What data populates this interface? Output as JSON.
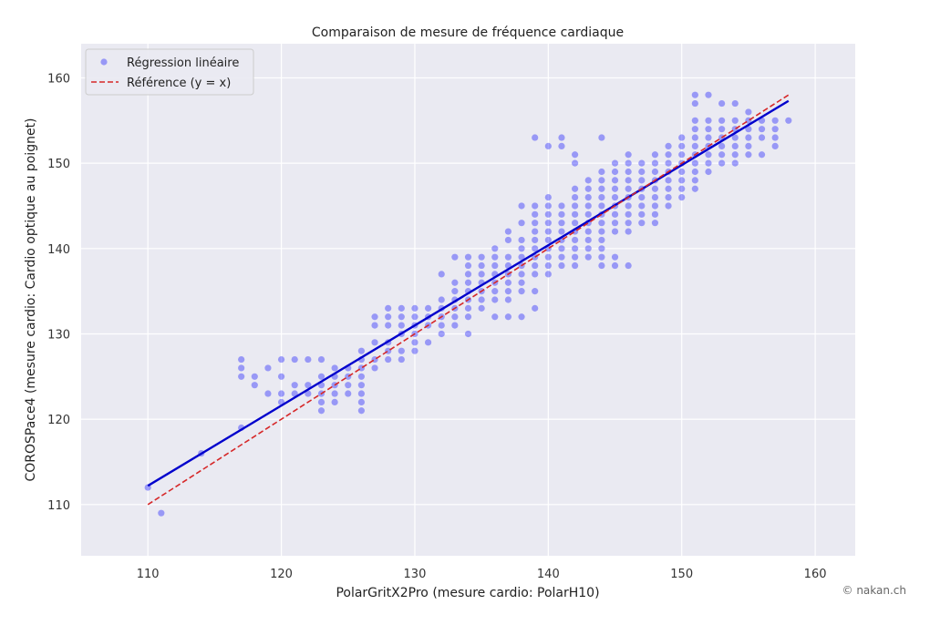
{
  "chart_data": {
    "type": "scatter",
    "title": "Comparaison de mesure de fréquence cardiaque",
    "xlabel": "PolarGritX2Pro (mesure cardio: PolarH10)",
    "ylabel": "COROSPace4 (mesure cardio: Cardio optique au poignet)",
    "xlim": [
      105,
      163
    ],
    "ylim": [
      104,
      164
    ],
    "xticks": [
      110,
      120,
      130,
      140,
      150,
      160
    ],
    "yticks": [
      110,
      120,
      130,
      140,
      150,
      160
    ],
    "grid": true,
    "legend_position": "top-left",
    "background": "#eaeaf2",
    "series": [
      {
        "name": "Régression linéaire",
        "kind": "scatter",
        "color": "#0000ff",
        "alpha": 0.35,
        "points": [
          [
            110,
            112
          ],
          [
            111,
            109
          ],
          [
            114,
            116
          ],
          [
            117,
            119
          ],
          [
            117,
            125
          ],
          [
            117,
            126
          ],
          [
            117,
            127
          ],
          [
            118,
            124
          ],
          [
            118,
            125
          ],
          [
            119,
            123
          ],
          [
            119,
            126
          ],
          [
            120,
            122
          ],
          [
            120,
            123
          ],
          [
            120,
            125
          ],
          [
            120,
            127
          ],
          [
            121,
            123
          ],
          [
            121,
            124
          ],
          [
            121,
            127
          ],
          [
            122,
            123
          ],
          [
            122,
            124
          ],
          [
            122,
            127
          ],
          [
            123,
            121
          ],
          [
            123,
            122
          ],
          [
            123,
            123
          ],
          [
            123,
            124
          ],
          [
            123,
            125
          ],
          [
            123,
            127
          ],
          [
            124,
            122
          ],
          [
            124,
            123
          ],
          [
            124,
            124
          ],
          [
            124,
            125
          ],
          [
            124,
            126
          ],
          [
            125,
            123
          ],
          [
            125,
            124
          ],
          [
            125,
            125
          ],
          [
            125,
            126
          ],
          [
            126,
            121
          ],
          [
            126,
            122
          ],
          [
            126,
            123
          ],
          [
            126,
            124
          ],
          [
            126,
            125
          ],
          [
            126,
            126
          ],
          [
            126,
            127
          ],
          [
            126,
            128
          ],
          [
            127,
            126
          ],
          [
            127,
            127
          ],
          [
            127,
            129
          ],
          [
            127,
            131
          ],
          [
            127,
            132
          ],
          [
            128,
            127
          ],
          [
            128,
            128
          ],
          [
            128,
            129
          ],
          [
            128,
            131
          ],
          [
            128,
            132
          ],
          [
            128,
            133
          ],
          [
            129,
            127
          ],
          [
            129,
            128
          ],
          [
            129,
            130
          ],
          [
            129,
            131
          ],
          [
            129,
            132
          ],
          [
            129,
            133
          ],
          [
            130,
            128
          ],
          [
            130,
            129
          ],
          [
            130,
            130
          ],
          [
            130,
            131
          ],
          [
            130,
            132
          ],
          [
            130,
            133
          ],
          [
            131,
            129
          ],
          [
            131,
            131
          ],
          [
            131,
            132
          ],
          [
            131,
            133
          ],
          [
            132,
            130
          ],
          [
            132,
            131
          ],
          [
            132,
            132
          ],
          [
            132,
            133
          ],
          [
            132,
            134
          ],
          [
            132,
            137
          ],
          [
            133,
            131
          ],
          [
            133,
            132
          ],
          [
            133,
            133
          ],
          [
            133,
            134
          ],
          [
            133,
            135
          ],
          [
            133,
            136
          ],
          [
            133,
            139
          ],
          [
            134,
            130
          ],
          [
            134,
            132
          ],
          [
            134,
            133
          ],
          [
            134,
            134
          ],
          [
            134,
            135
          ],
          [
            134,
            136
          ],
          [
            134,
            137
          ],
          [
            134,
            138
          ],
          [
            134,
            139
          ],
          [
            135,
            133
          ],
          [
            135,
            134
          ],
          [
            135,
            135
          ],
          [
            135,
            136
          ],
          [
            135,
            137
          ],
          [
            135,
            138
          ],
          [
            135,
            139
          ],
          [
            136,
            132
          ],
          [
            136,
            134
          ],
          [
            136,
            135
          ],
          [
            136,
            136
          ],
          [
            136,
            137
          ],
          [
            136,
            138
          ],
          [
            136,
            139
          ],
          [
            136,
            140
          ],
          [
            137,
            132
          ],
          [
            137,
            134
          ],
          [
            137,
            135
          ],
          [
            137,
            136
          ],
          [
            137,
            137
          ],
          [
            137,
            138
          ],
          [
            137,
            139
          ],
          [
            137,
            141
          ],
          [
            137,
            142
          ],
          [
            138,
            132
          ],
          [
            138,
            135
          ],
          [
            138,
            136
          ],
          [
            138,
            137
          ],
          [
            138,
            138
          ],
          [
            138,
            139
          ],
          [
            138,
            140
          ],
          [
            138,
            141
          ],
          [
            138,
            143
          ],
          [
            138,
            145
          ],
          [
            139,
            133
          ],
          [
            139,
            135
          ],
          [
            139,
            137
          ],
          [
            139,
            138
          ],
          [
            139,
            139
          ],
          [
            139,
            140
          ],
          [
            139,
            141
          ],
          [
            139,
            142
          ],
          [
            139,
            143
          ],
          [
            139,
            144
          ],
          [
            139,
            145
          ],
          [
            139,
            153
          ],
          [
            140,
            137
          ],
          [
            140,
            138
          ],
          [
            140,
            139
          ],
          [
            140,
            140
          ],
          [
            140,
            141
          ],
          [
            140,
            142
          ],
          [
            140,
            143
          ],
          [
            140,
            144
          ],
          [
            140,
            145
          ],
          [
            140,
            146
          ],
          [
            140,
            152
          ],
          [
            141,
            138
          ],
          [
            141,
            139
          ],
          [
            141,
            140
          ],
          [
            141,
            141
          ],
          [
            141,
            142
          ],
          [
            141,
            143
          ],
          [
            141,
            144
          ],
          [
            141,
            145
          ],
          [
            141,
            152
          ],
          [
            141,
            153
          ],
          [
            142,
            138
          ],
          [
            142,
            139
          ],
          [
            142,
            140
          ],
          [
            142,
            141
          ],
          [
            142,
            142
          ],
          [
            142,
            143
          ],
          [
            142,
            144
          ],
          [
            142,
            145
          ],
          [
            142,
            146
          ],
          [
            142,
            147
          ],
          [
            142,
            150
          ],
          [
            142,
            151
          ],
          [
            143,
            139
          ],
          [
            143,
            140
          ],
          [
            143,
            141
          ],
          [
            143,
            142
          ],
          [
            143,
            143
          ],
          [
            143,
            144
          ],
          [
            143,
            145
          ],
          [
            143,
            146
          ],
          [
            143,
            147
          ],
          [
            143,
            148
          ],
          [
            144,
            138
          ],
          [
            144,
            139
          ],
          [
            144,
            140
          ],
          [
            144,
            141
          ],
          [
            144,
            142
          ],
          [
            144,
            143
          ],
          [
            144,
            144
          ],
          [
            144,
            145
          ],
          [
            144,
            146
          ],
          [
            144,
            147
          ],
          [
            144,
            148
          ],
          [
            144,
            149
          ],
          [
            144,
            153
          ],
          [
            145,
            138
          ],
          [
            145,
            139
          ],
          [
            145,
            142
          ],
          [
            145,
            143
          ],
          [
            145,
            144
          ],
          [
            145,
            145
          ],
          [
            145,
            146
          ],
          [
            145,
            147
          ],
          [
            145,
            148
          ],
          [
            145,
            149
          ],
          [
            145,
            150
          ],
          [
            146,
            138
          ],
          [
            146,
            142
          ],
          [
            146,
            143
          ],
          [
            146,
            144
          ],
          [
            146,
            145
          ],
          [
            146,
            146
          ],
          [
            146,
            147
          ],
          [
            146,
            148
          ],
          [
            146,
            149
          ],
          [
            146,
            150
          ],
          [
            146,
            151
          ],
          [
            147,
            143
          ],
          [
            147,
            144
          ],
          [
            147,
            145
          ],
          [
            147,
            146
          ],
          [
            147,
            147
          ],
          [
            147,
            148
          ],
          [
            147,
            149
          ],
          [
            147,
            150
          ],
          [
            148,
            143
          ],
          [
            148,
            144
          ],
          [
            148,
            145
          ],
          [
            148,
            146
          ],
          [
            148,
            147
          ],
          [
            148,
            148
          ],
          [
            148,
            149
          ],
          [
            148,
            150
          ],
          [
            148,
            151
          ],
          [
            149,
            145
          ],
          [
            149,
            146
          ],
          [
            149,
            147
          ],
          [
            149,
            148
          ],
          [
            149,
            149
          ],
          [
            149,
            150
          ],
          [
            149,
            151
          ],
          [
            149,
            152
          ],
          [
            150,
            146
          ],
          [
            150,
            147
          ],
          [
            150,
            148
          ],
          [
            150,
            149
          ],
          [
            150,
            150
          ],
          [
            150,
            151
          ],
          [
            150,
            152
          ],
          [
            150,
            153
          ],
          [
            151,
            147
          ],
          [
            151,
            148
          ],
          [
            151,
            149
          ],
          [
            151,
            150
          ],
          [
            151,
            151
          ],
          [
            151,
            152
          ],
          [
            151,
            153
          ],
          [
            151,
            154
          ],
          [
            151,
            155
          ],
          [
            151,
            157
          ],
          [
            151,
            158
          ],
          [
            152,
            149
          ],
          [
            152,
            150
          ],
          [
            152,
            151
          ],
          [
            152,
            152
          ],
          [
            152,
            153
          ],
          [
            152,
            154
          ],
          [
            152,
            155
          ],
          [
            152,
            158
          ],
          [
            153,
            150
          ],
          [
            153,
            151
          ],
          [
            153,
            152
          ],
          [
            153,
            153
          ],
          [
            153,
            154
          ],
          [
            153,
            155
          ],
          [
            153,
            157
          ],
          [
            154,
            150
          ],
          [
            154,
            151
          ],
          [
            154,
            152
          ],
          [
            154,
            153
          ],
          [
            154,
            154
          ],
          [
            154,
            155
          ],
          [
            154,
            157
          ],
          [
            155,
            151
          ],
          [
            155,
            152
          ],
          [
            155,
            153
          ],
          [
            155,
            154
          ],
          [
            155,
            155
          ],
          [
            155,
            156
          ],
          [
            156,
            151
          ],
          [
            156,
            153
          ],
          [
            156,
            154
          ],
          [
            156,
            155
          ],
          [
            157,
            152
          ],
          [
            157,
            153
          ],
          [
            157,
            154
          ],
          [
            157,
            155
          ],
          [
            158,
            155
          ]
        ]
      },
      {
        "name": "",
        "kind": "line",
        "color": "#0000cc",
        "style": "solid",
        "points": [
          [
            110,
            112.2
          ],
          [
            158,
            157.3
          ]
        ]
      },
      {
        "name": "Référence (y = x)",
        "kind": "line",
        "color": "#d62728",
        "style": "dashed",
        "points": [
          [
            110,
            110
          ],
          [
            158,
            158
          ]
        ]
      }
    ]
  },
  "credit": "© nakan.ch"
}
